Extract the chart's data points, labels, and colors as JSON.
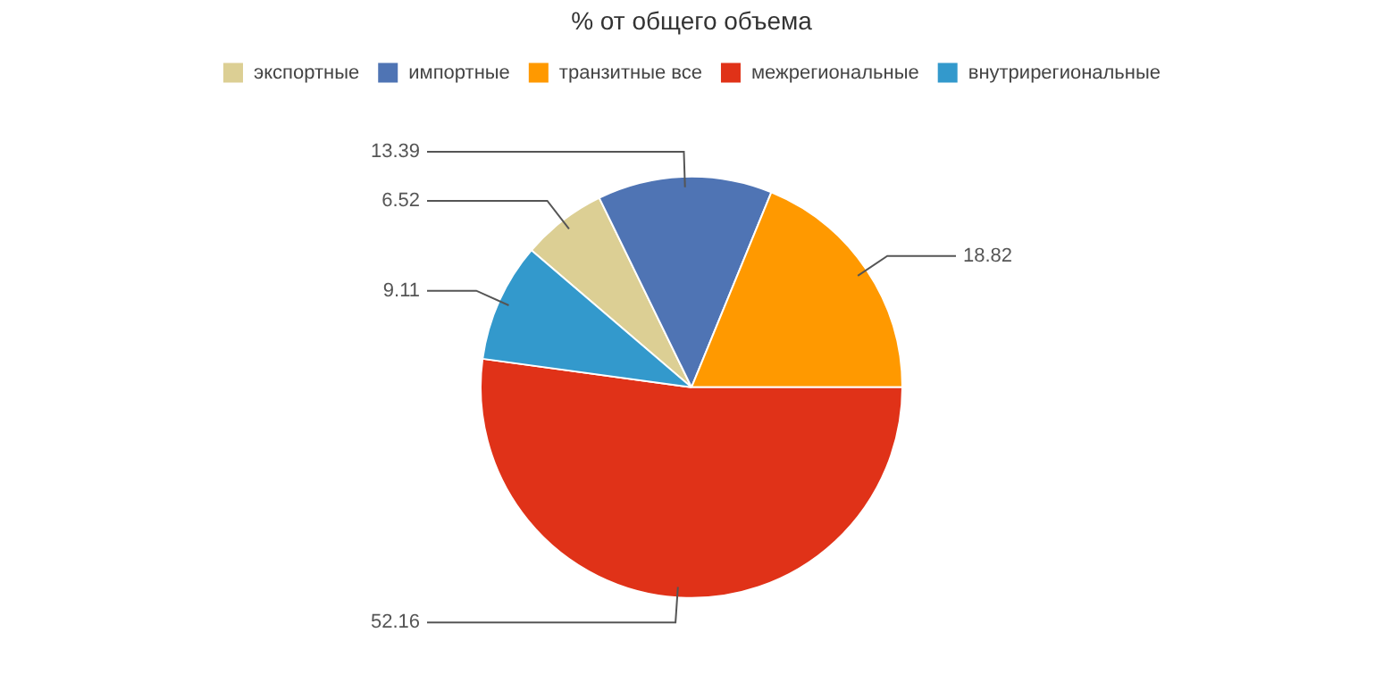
{
  "chart_data": {
    "type": "pie",
    "title": "% от общего объема",
    "categories": [
      "экспортные",
      "импортные",
      "транзитные все",
      "межрегиональные",
      "внутрирегиональные"
    ],
    "values": [
      6.52,
      13.39,
      18.82,
      52.16,
      9.11
    ],
    "colors": [
      "#dccf94",
      "#4f74b4",
      "#ff9900",
      "#e03218",
      "#3399cc"
    ],
    "legend": "top",
    "data_labels": true
  }
}
